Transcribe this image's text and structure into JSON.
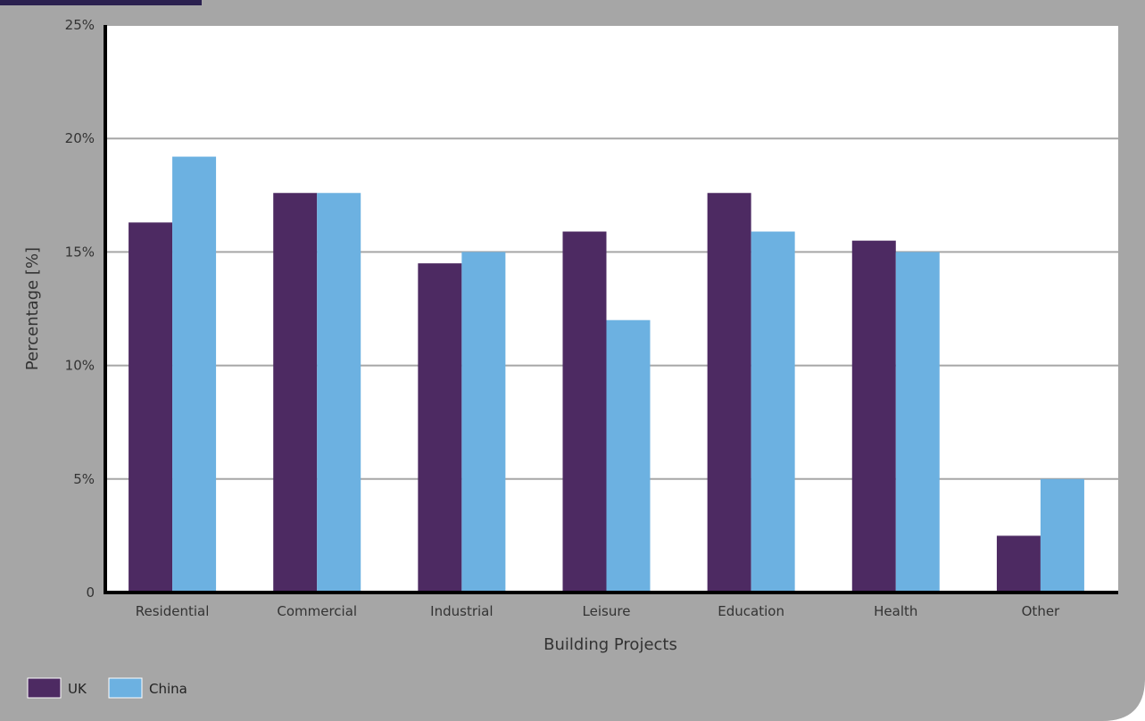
{
  "chart_data": {
    "type": "bar",
    "title": "",
    "xlabel": "Building Projects",
    "ylabel": "Percentage [%]",
    "ylim": [
      0,
      25
    ],
    "yticks": [
      0,
      5,
      10,
      15,
      20,
      25
    ],
    "ytick_labels": [
      "0",
      "5%",
      "10%",
      "15%",
      "20%",
      "25%"
    ],
    "grid": true,
    "legend_position": "bottom-left",
    "categories": [
      "Residential",
      "Commercial",
      "Industrial",
      "Leisure",
      "Education",
      "Health",
      "Other"
    ],
    "series": [
      {
        "name": "UK",
        "color": "#4d2a62",
        "values": [
          16.3,
          17.6,
          14.5,
          15.9,
          17.6,
          15.5,
          2.5
        ]
      },
      {
        "name": "China",
        "color": "#6cb1e1",
        "values": [
          19.2,
          17.6,
          15.0,
          12.0,
          15.9,
          15.0,
          5.0
        ]
      }
    ]
  },
  "colors": {
    "panel": "#a6a6a6",
    "plot_background": "#ffffff",
    "gridline": "#a6a6a6",
    "axis": "#000000",
    "top_band": "#2b2150"
  }
}
